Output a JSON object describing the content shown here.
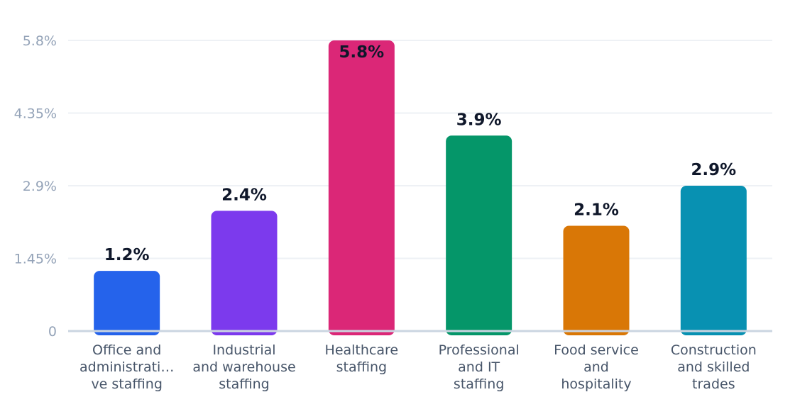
{
  "chart_data": {
    "type": "bar",
    "categories": [
      [
        "Office and",
        "administrati…",
        "ve staffing"
      ],
      [
        "Industrial",
        "and warehouse",
        "staffing"
      ],
      [
        "Healthcare",
        "staffing"
      ],
      [
        "Professional",
        "and IT",
        "staffing"
      ],
      [
        "Food service",
        "and",
        "hospitality"
      ],
      [
        "Construction",
        "and skilled",
        "trades"
      ]
    ],
    "values": [
      1.2,
      2.4,
      5.8,
      3.9,
      2.1,
      2.9
    ],
    "data_labels": [
      "1.2%",
      "2.4%",
      "5.8%",
      "3.9%",
      "2.1%",
      "2.9%"
    ],
    "colors": [
      "#2563eb",
      "#7c3aed",
      "#db2777",
      "#059669",
      "#d97706",
      "#0891b2"
    ],
    "yticks": [
      0,
      1.45,
      2.9,
      4.35,
      5.8
    ],
    "ytick_labels": [
      "0",
      "1.45%",
      "2.9%",
      "4.35%",
      "5.8%"
    ],
    "ylim": [
      0,
      5.8
    ],
    "grid": true,
    "title": "",
    "xlabel": "",
    "ylabel": ""
  }
}
